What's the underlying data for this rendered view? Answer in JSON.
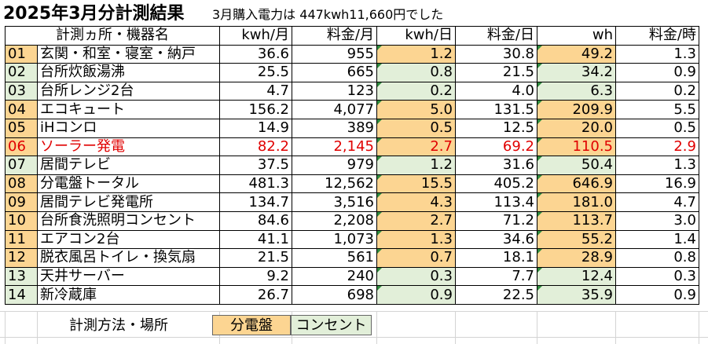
{
  "title": "2025年3月分計測結果",
  "subtitle": "3月購入電力は 447kwh11,660円でした",
  "headers": [
    "計測ヵ所・機器名",
    "kwh/月",
    "料金/月",
    "kwh/日",
    "料金/日",
    "wh",
    "料金/時"
  ],
  "rows": [
    {
      "no": "01",
      "name": "玄関・和室・寝室・納戸",
      "kwh_month": "36.6",
      "fee_month": "955",
      "kwh_day": "1.2",
      "fee_day": "30.8",
      "wh": "49.2",
      "fee_hour": "1.3",
      "type": "分電盤",
      "highlight": false
    },
    {
      "no": "02",
      "name": "台所炊飯湯沸",
      "kwh_month": "25.5",
      "fee_month": "665",
      "kwh_day": "0.8",
      "fee_day": "21.5",
      "wh": "34.2",
      "fee_hour": "0.9",
      "type": "コンセント",
      "highlight": false
    },
    {
      "no": "03",
      "name": "台所レンジ2台",
      "kwh_month": "4.7",
      "fee_month": "123",
      "kwh_day": "0.2",
      "fee_day": "4.0",
      "wh": "6.3",
      "fee_hour": "0.2",
      "type": "コンセント",
      "highlight": false
    },
    {
      "no": "04",
      "name": "エコキュート",
      "kwh_month": "156.2",
      "fee_month": "4,077",
      "kwh_day": "5.0",
      "fee_day": "131.5",
      "wh": "209.9",
      "fee_hour": "5.5",
      "type": "分電盤",
      "highlight": false
    },
    {
      "no": "05",
      "name": "iHコンロ",
      "kwh_month": "14.9",
      "fee_month": "389",
      "kwh_day": "0.5",
      "fee_day": "12.5",
      "wh": "20.0",
      "fee_hour": "0.5",
      "type": "分電盤",
      "highlight": false
    },
    {
      "no": "06",
      "name": "ソーラー発電",
      "kwh_month": "82.2",
      "fee_month": "2,145",
      "kwh_day": "2.7",
      "fee_day": "69.2",
      "wh": "110.5",
      "fee_hour": "2.9",
      "type": "分電盤",
      "highlight": true
    },
    {
      "no": "07",
      "name": "居間テレビ",
      "kwh_month": "37.5",
      "fee_month": "979",
      "kwh_day": "1.2",
      "fee_day": "31.6",
      "wh": "50.4",
      "fee_hour": "1.3",
      "type": "コンセント",
      "highlight": false
    },
    {
      "no": "08",
      "name": "分電盤トータル",
      "kwh_month": "481.3",
      "fee_month": "12,562",
      "kwh_day": "15.5",
      "fee_day": "405.2",
      "wh": "646.9",
      "fee_hour": "16.9",
      "type": "分電盤",
      "highlight": false
    },
    {
      "no": "09",
      "name": "居間テレビ発電所",
      "kwh_month": "134.7",
      "fee_month": "3,516",
      "kwh_day": "4.3",
      "fee_day": "113.4",
      "wh": "181.0",
      "fee_hour": "4.7",
      "type": "分電盤",
      "highlight": false
    },
    {
      "no": "10",
      "name": "台所食洗照明コンセント",
      "kwh_month": "84.6",
      "fee_month": "2,208",
      "kwh_day": "2.7",
      "fee_day": "71.2",
      "wh": "113.7",
      "fee_hour": "3.0",
      "type": "分電盤",
      "highlight": false
    },
    {
      "no": "11",
      "name": "エアコン2台",
      "kwh_month": "41.1",
      "fee_month": "1,073",
      "kwh_day": "1.3",
      "fee_day": "34.6",
      "wh": "55.2",
      "fee_hour": "1.4",
      "type": "分電盤",
      "highlight": false
    },
    {
      "no": "12",
      "name": "脱衣風呂トイレ・換気扇",
      "kwh_month": "21.5",
      "fee_month": "561",
      "kwh_day": "0.7",
      "fee_day": "18.1",
      "wh": "28.9",
      "fee_hour": "0.8",
      "type": "分電盤",
      "highlight": false
    },
    {
      "no": "13",
      "name": "天井サーバー",
      "kwh_month": "9.2",
      "fee_month": "240",
      "kwh_day": "0.3",
      "fee_day": "7.7",
      "wh": "12.4",
      "fee_hour": "0.3",
      "type": "コンセント",
      "highlight": false
    },
    {
      "no": "14",
      "name": "新冷蔵庫",
      "kwh_month": "26.7",
      "fee_month": "698",
      "kwh_day": "0.9",
      "fee_day": "22.5",
      "wh": "35.9",
      "fee_hour": "0.9",
      "type": "コンセント",
      "highlight": false
    }
  ],
  "footer": {
    "label": "計測方法・場所",
    "legend_panel": "分電盤",
    "legend_outlet": "コンセント"
  },
  "colors": {
    "panel": "#fcd592",
    "outlet": "#e2efd9",
    "highlight_text": "#e00000",
    "corner_marker": "#2e8b3e"
  }
}
